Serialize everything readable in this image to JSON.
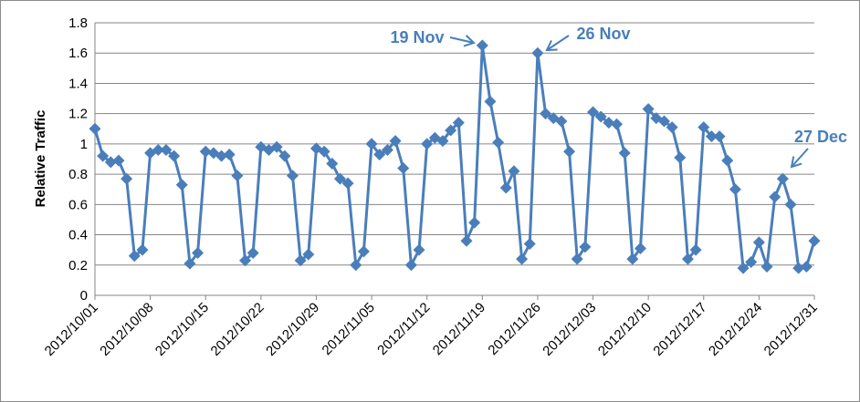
{
  "chart_data": {
    "type": "line",
    "title": "",
    "xlabel": "",
    "ylabel": "Relative Traffic",
    "ylim": [
      0,
      1.8
    ],
    "yticks": [
      "0",
      "0.2",
      "0.4",
      "0.6",
      "0.8",
      "1",
      "1.2",
      "1.4",
      "1.6",
      "1.8"
    ],
    "xlim": [
      "2012/10/01",
      "2012/12/31"
    ],
    "xtick_labels": [
      "2012/10/01",
      "2012/10/08",
      "2012/10/15",
      "2012/10/22",
      "2012/10/29",
      "2012/11/05",
      "2012/11/12",
      "2012/11/19",
      "2012/11/26",
      "2012/12/03",
      "2012/12/10",
      "2012/12/17",
      "2012/12/24",
      "2012/12/31"
    ],
    "grid": "horizontal",
    "legend": "none",
    "marker": "diamond",
    "color": "#4a7ebb",
    "series": [
      {
        "values": [
          [
            "2012/10/01",
            1.1
          ],
          [
            "2012/10/02",
            0.92
          ],
          [
            "2012/10/03",
            0.88
          ],
          [
            "2012/10/04",
            0.89
          ],
          [
            "2012/10/05",
            0.77
          ],
          [
            "2012/10/06",
            0.26
          ],
          [
            "2012/10/07",
            0.3
          ],
          [
            "2012/10/08",
            0.94
          ],
          [
            "2012/10/09",
            0.96
          ],
          [
            "2012/10/10",
            0.96
          ],
          [
            "2012/10/11",
            0.92
          ],
          [
            "2012/10/12",
            0.73
          ],
          [
            "2012/10/13",
            0.21
          ],
          [
            "2012/10/14",
            0.28
          ],
          [
            "2012/10/15",
            0.95
          ],
          [
            "2012/10/16",
            0.94
          ],
          [
            "2012/10/17",
            0.92
          ],
          [
            "2012/10/18",
            0.93
          ],
          [
            "2012/10/19",
            0.79
          ],
          [
            "2012/10/20",
            0.23
          ],
          [
            "2012/10/21",
            0.28
          ],
          [
            "2012/10/22",
            0.98
          ],
          [
            "2012/10/23",
            0.96
          ],
          [
            "2012/10/24",
            0.98
          ],
          [
            "2012/10/25",
            0.92
          ],
          [
            "2012/10/26",
            0.79
          ],
          [
            "2012/10/27",
            0.23
          ],
          [
            "2012/10/28",
            0.27
          ],
          [
            "2012/10/29",
            0.97
          ],
          [
            "2012/10/30",
            0.95
          ],
          [
            "2012/10/31",
            0.87
          ],
          [
            "2012/11/01",
            0.77
          ],
          [
            "2012/11/02",
            0.74
          ],
          [
            "2012/11/03",
            0.2
          ],
          [
            "2012/11/04",
            0.29
          ],
          [
            "2012/11/05",
            1.0
          ],
          [
            "2012/11/06",
            0.93
          ],
          [
            "2012/11/07",
            0.96
          ],
          [
            "2012/11/08",
            1.02
          ],
          [
            "2012/11/09",
            0.84
          ],
          [
            "2012/11/10",
            0.2
          ],
          [
            "2012/11/11",
            0.3
          ],
          [
            "2012/11/12",
            1.0
          ],
          [
            "2012/11/13",
            1.04
          ],
          [
            "2012/11/14",
            1.02
          ],
          [
            "2012/11/15",
            1.09
          ],
          [
            "2012/11/16",
            1.14
          ],
          [
            "2012/11/17",
            0.36
          ],
          [
            "2012/11/18",
            0.48
          ],
          [
            "2012/11/19",
            1.65
          ],
          [
            "2012/11/20",
            1.28
          ],
          [
            "2012/11/21",
            1.01
          ],
          [
            "2012/11/22",
            0.71
          ],
          [
            "2012/11/23",
            0.82
          ],
          [
            "2012/11/24",
            0.24
          ],
          [
            "2012/11/25",
            0.34
          ],
          [
            "2012/11/26",
            1.6
          ],
          [
            "2012/11/27",
            1.2
          ],
          [
            "2012/11/28",
            1.17
          ],
          [
            "2012/11/29",
            1.15
          ],
          [
            "2012/11/30",
            0.95
          ],
          [
            "2012/12/01",
            0.24
          ],
          [
            "2012/12/02",
            0.32
          ],
          [
            "2012/12/03",
            1.21
          ],
          [
            "2012/12/04",
            1.18
          ],
          [
            "2012/12/05",
            1.14
          ],
          [
            "2012/12/06",
            1.13
          ],
          [
            "2012/12/07",
            0.94
          ],
          [
            "2012/12/08",
            0.24
          ],
          [
            "2012/12/09",
            0.31
          ],
          [
            "2012/12/10",
            1.23
          ],
          [
            "2012/12/11",
            1.17
          ],
          [
            "2012/12/12",
            1.15
          ],
          [
            "2012/12/13",
            1.11
          ],
          [
            "2012/12/14",
            0.91
          ],
          [
            "2012/12/15",
            0.24
          ],
          [
            "2012/12/16",
            0.3
          ],
          [
            "2012/12/17",
            1.11
          ],
          [
            "2012/12/18",
            1.05
          ],
          [
            "2012/12/19",
            1.05
          ],
          [
            "2012/12/20",
            0.89
          ],
          [
            "2012/12/21",
            0.7
          ],
          [
            "2012/12/22",
            0.18
          ],
          [
            "2012/12/23",
            0.22
          ],
          [
            "2012/12/24",
            0.35
          ],
          [
            "2012/12/25",
            0.19
          ],
          [
            "2012/12/26",
            0.65
          ],
          [
            "2012/12/27",
            0.77
          ],
          [
            "2012/12/28",
            0.6
          ],
          [
            "2012/12/29",
            0.18
          ],
          [
            "2012/12/30",
            0.19
          ],
          [
            "2012/12/31",
            0.36
          ]
        ]
      }
    ],
    "annotations": [
      {
        "text": "19 Nov",
        "target": [
          "2012/11/19",
          1.65
        ],
        "color": "#4a7ebb"
      },
      {
        "text": "26 Nov",
        "target": [
          "2012/11/26",
          1.6
        ],
        "color": "#4a7ebb"
      },
      {
        "text": "27 Dec",
        "target": [
          "2012/12/27",
          0.77
        ],
        "color": "#4a7ebb"
      }
    ]
  }
}
